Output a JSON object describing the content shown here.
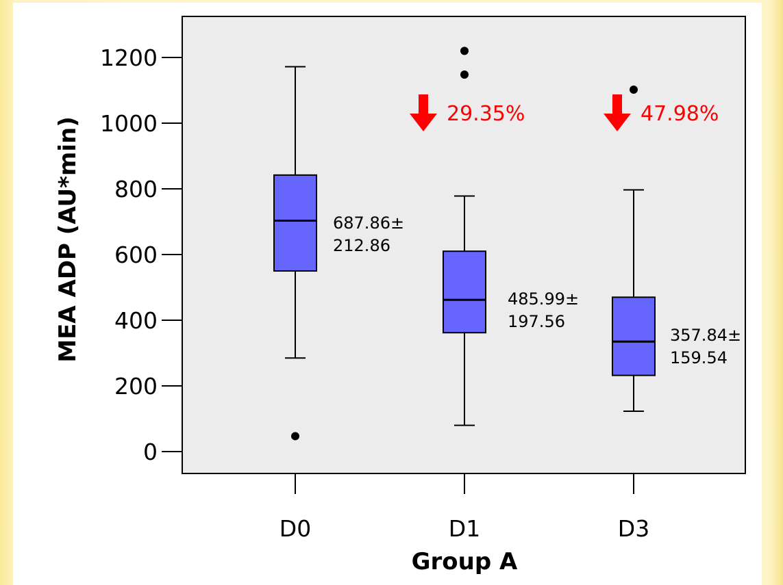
{
  "chart_data": {
    "type": "box",
    "xlabel": "Group A",
    "ylabel": "MEA ADP (AU*min)",
    "ylim": [
      -50,
      1270
    ],
    "yticks": [
      0,
      200,
      400,
      600,
      800,
      1000,
      1200
    ],
    "grid": false,
    "categories": [
      "D0",
      "D1",
      "D3"
    ],
    "boxes": [
      {
        "category": "D0",
        "whisker_low": 285,
        "q1": 550,
        "median": 703,
        "q3": 842,
        "whisker_high": 1172,
        "outliers": [
          47
        ]
      },
      {
        "category": "D1",
        "whisker_low": 80,
        "q1": 362,
        "median": 462,
        "q3": 610,
        "whisker_high": 778,
        "outliers": [
          1148,
          1220
        ]
      },
      {
        "category": "D3",
        "whisker_low": 123,
        "q1": 232,
        "median": 335,
        "q3": 470,
        "whisker_high": 797,
        "outliers": [
          1102
        ]
      }
    ],
    "annotations": [
      {
        "category": "D0",
        "line1": "687.86±",
        "line2": "212.86"
      },
      {
        "category": "D1",
        "line1": "485.99±",
        "line2": "197.56"
      },
      {
        "category": "D3",
        "line1": "357.84±",
        "line2": "159.54"
      }
    ],
    "decreases": [
      {
        "category": "D1",
        "text": "29.35%"
      },
      {
        "category": "D3",
        "text": "47.98%"
      }
    ],
    "colors": {
      "box_fill": "#6666ff",
      "plot_bg": "#ececec",
      "decrease": "#ff0000"
    }
  }
}
